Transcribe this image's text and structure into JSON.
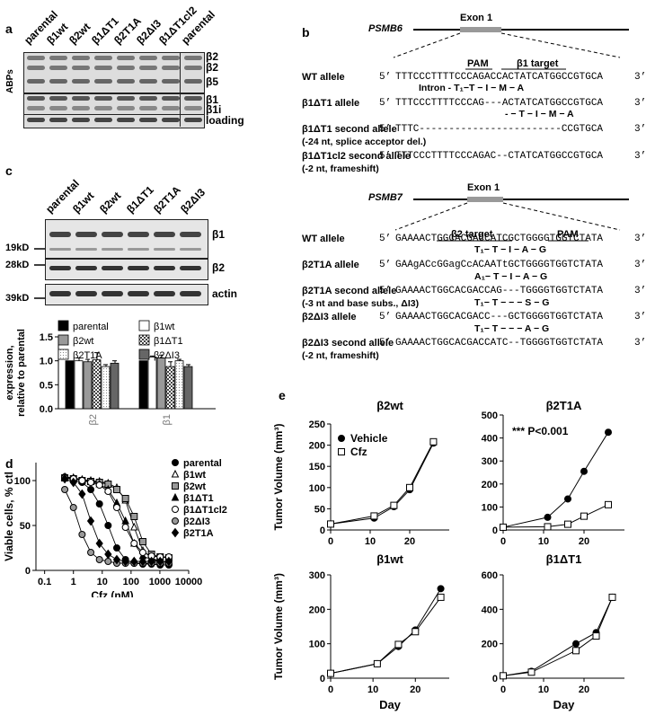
{
  "panels": {
    "a": "a",
    "b": "b",
    "c": "c",
    "d": "d",
    "e": "e"
  },
  "panel_a": {
    "lanes": [
      "parental",
      "β1wt",
      "β2wt",
      "β1ΔT1",
      "β2T1A",
      "β2ΔI3",
      "β1ΔT1cl2",
      "parental"
    ],
    "side_label": "ABPs",
    "band_labels": [
      "β2",
      "β2",
      "β5",
      "β1",
      "β1i",
      "loading"
    ]
  },
  "panel_b": {
    "gene1": "PSMB6",
    "exon1": "Exon 1",
    "pam1": "PAM",
    "target1": "β1 target",
    "rows1": [
      {
        "label": "WT allele",
        "five": "5’",
        "seq": "TTTCCCTTTTCCCAGACCACTATCATGGCCGTGCA",
        "three": "3’"
      },
      {
        "label": "β1ΔT1 allele",
        "five": "5’",
        "seq": "TTTCCCTTTTCCCAG---ACTATCATGGCCGTGCA",
        "three": "3’"
      },
      {
        "label": "β1ΔT1 second allele",
        "sub": "(-24 nt, splice acceptor del.)",
        "five": "5’",
        "seq": "TTTC------------------------CCGTGCA",
        "three": "3’"
      },
      {
        "label": "β1ΔT1cl2 second allele",
        "sub": "(-2 nt, frameshift)",
        "five": "5’",
        "seq": "TTTCCCTTTTCCCAGAC--CTATCATGGCCGTGCA",
        "three": "3’"
      }
    ],
    "aa1_wt": "Intron - T₁−T − I − M − A",
    "aa1_mut": "- − T − I − M − A",
    "gene2": "PSMB7",
    "exon2": "Exon 1",
    "pam2": "PAM",
    "target2": "β2 target",
    "rows2": [
      {
        "label": "WT allele",
        "five": "5’",
        "seq": "GAAAACTGGCACGACCATCGCTGGGGTGGTCTATA",
        "three": "3’"
      },
      {
        "label": "β2T1A allele",
        "five": "5’",
        "seq": "GAAgACcGGagCcACAATtGCTGGGGTGGTCTATA",
        "three": "3’"
      },
      {
        "label": "β2T1A second allele",
        "sub": "(-3 nt and base subs., ΔI3)",
        "five": "5’",
        "seq": "GAAAACTGGCACGACCAG---TGGGGTGGTCTATA",
        "three": "3’"
      },
      {
        "label": "β2ΔI3 allele",
        "five": "5’",
        "seq": "GAAAACTGGCACGACC---GCTGGGGTGGTCTATA",
        "three": "3’"
      },
      {
        "label": "β2ΔI3 second allele",
        "sub": "(-2 nt, frameshift)",
        "five": "5’",
        "seq": "GAAAACTGGCACGACCATC--TGGGGTGGTCTATA",
        "three": "3’"
      }
    ],
    "aa2": [
      "T₁− T − I − A − G",
      "A₁− T − I − A − G",
      "T₁− T − − − S − G",
      "T₁− T − − − A − G"
    ]
  },
  "panel_c": {
    "lanes": [
      "parental",
      "β1wt",
      "β2wt",
      "β1ΔT1",
      "β2T1A",
      "β2ΔI3"
    ],
    "blot_labels": [
      "β1",
      "β2",
      "actin"
    ],
    "mw": [
      "19kD",
      "28kD",
      "39kD"
    ]
  },
  "chart_data": [
    {
      "id": "c-bar",
      "type": "bar",
      "ylabel": "expression,\nrelative to parental",
      "categories": [
        "β2",
        "β1"
      ],
      "ylim": [
        0,
        1.5
      ],
      "yticks": [
        "0.0",
        "0.5",
        "1.0",
        "1.5"
      ],
      "series": [
        {
          "name": "parental",
          "color": "#000000",
          "pattern": "solid",
          "values": [
            1.0,
            1.0
          ]
        },
        {
          "name": "β1wt",
          "color": "#ffffff",
          "pattern": "open",
          "values": [
            1.0,
            1.08
          ]
        },
        {
          "name": "β2wt",
          "color": "#999999",
          "pattern": "solid",
          "values": [
            0.98,
            1.06
          ]
        },
        {
          "name": "β1ΔT1",
          "color": "#555555",
          "pattern": "check",
          "values": [
            1.02,
            0.88
          ]
        },
        {
          "name": "β2T1A",
          "color": "#dddddd",
          "pattern": "dots",
          "values": [
            0.88,
            1.0
          ]
        },
        {
          "name": "β2ΔI3",
          "color": "#666666",
          "pattern": "solid",
          "values": [
            0.95,
            0.88
          ]
        }
      ],
      "errors": [
        [
          0,
          0.06,
          0.05,
          0.15,
          0.04,
          0.05
        ],
        [
          0,
          0.02,
          0.06,
          0.1,
          0.03,
          0.04
        ]
      ]
    },
    {
      "id": "d-dose",
      "type": "scatter",
      "xlabel": "Cfz (nM)",
      "ylabel": "Viable cells, % ctl",
      "xscale": "log",
      "xlim": [
        0.05,
        10000
      ],
      "ylim": [
        0,
        120
      ],
      "xticks": [
        "0.1",
        "1",
        "10",
        "100",
        "1000",
        "10000"
      ],
      "yticks": [
        "0",
        "50",
        "100"
      ],
      "series": [
        {
          "name": "parental",
          "marker": "circle-filled",
          "x": [
            0.5,
            1,
            2,
            4,
            8,
            16,
            32,
            64,
            128,
            256,
            512,
            1024,
            2048
          ],
          "y": [
            104,
            100,
            98,
            90,
            74,
            50,
            25,
            12,
            8,
            7,
            7,
            6,
            6
          ]
        },
        {
          "name": "β1wt",
          "marker": "triangle-open",
          "x": [
            0.5,
            1,
            2,
            4,
            8,
            16,
            32,
            64,
            128,
            256,
            512,
            1024,
            2048
          ],
          "y": [
            104,
            103,
            101,
            100,
            99,
            97,
            92,
            78,
            48,
            22,
            14,
            10,
            9
          ]
        },
        {
          "name": "β2wt",
          "marker": "square-filled-gray",
          "x": [
            0.5,
            1,
            2,
            4,
            8,
            16,
            32,
            64,
            128,
            256,
            512,
            1024,
            2048
          ],
          "y": [
            103,
            102,
            100,
            99,
            98,
            96,
            90,
            80,
            60,
            32,
            18,
            15,
            14
          ]
        },
        {
          "name": "β1ΔT1",
          "marker": "triangle-filled",
          "x": [
            0.5,
            1,
            2,
            4,
            8,
            16,
            32,
            64,
            128,
            256,
            512,
            1024,
            2048
          ],
          "y": [
            104,
            103,
            101,
            99,
            96,
            90,
            75,
            55,
            30,
            16,
            12,
            10,
            10
          ]
        },
        {
          "name": "β1ΔT1cl2",
          "marker": "circle-open",
          "x": [
            0.5,
            1,
            2,
            4,
            8,
            16,
            32,
            64,
            128,
            256,
            512,
            1024,
            2048
          ],
          "y": [
            103,
            102,
            100,
            98,
            95,
            88,
            70,
            48,
            30,
            20,
            16,
            15,
            15
          ]
        },
        {
          "name": "β2ΔI3",
          "marker": "circle-filled-gray",
          "x": [
            0.5,
            1,
            2,
            4,
            8,
            16,
            32,
            64,
            128,
            256,
            512,
            1024,
            2048
          ],
          "y": [
            90,
            70,
            40,
            20,
            12,
            10,
            8,
            8,
            8,
            8,
            8,
            8,
            8
          ]
        },
        {
          "name": "β2T1A",
          "marker": "diamond-filled",
          "x": [
            0.5,
            1,
            2,
            4,
            8,
            16,
            32,
            64,
            128,
            256,
            512,
            1024,
            2048
          ],
          "y": [
            102,
            98,
            85,
            55,
            30,
            18,
            12,
            10,
            10,
            10,
            10,
            10,
            10
          ]
        }
      ]
    },
    {
      "id": "e-b2wt",
      "type": "line",
      "title": "β2wt",
      "ylabel": "Tumor Volume (mm³)",
      "xlim": [
        0,
        30
      ],
      "ylim": [
        0,
        250
      ],
      "xticks": [
        "0",
        "10",
        "20"
      ],
      "yticks": [
        "0",
        "50",
        "100",
        "150",
        "200",
        "250"
      ],
      "series": [
        {
          "name": "Vehicle",
          "marker": "circle-filled",
          "x": [
            0,
            11,
            16,
            20,
            26
          ],
          "y": [
            14,
            28,
            55,
            95,
            205
          ]
        },
        {
          "name": "Cfz",
          "marker": "square-open",
          "x": [
            0,
            11,
            16,
            20,
            26
          ],
          "y": [
            14,
            33,
            58,
            100,
            208
          ]
        }
      ]
    },
    {
      "id": "e-b2t1a",
      "type": "line",
      "title": "β2T1A",
      "xlim": [
        0,
        30
      ],
      "ylim": [
        0,
        500
      ],
      "xticks": [
        "0",
        "10",
        "20"
      ],
      "yticks": [
        "0",
        "100",
        "200",
        "300",
        "400",
        "500"
      ],
      "annotation": "*** P<0.001",
      "series": [
        {
          "name": "Vehicle",
          "marker": "circle-filled",
          "x": [
            0,
            11,
            16,
            20,
            26
          ],
          "y": [
            12,
            55,
            135,
            255,
            425
          ]
        },
        {
          "name": "Cfz",
          "marker": "square-open",
          "x": [
            0,
            11,
            16,
            20,
            26
          ],
          "y": [
            12,
            14,
            25,
            60,
            110
          ]
        }
      ]
    },
    {
      "id": "e-b1wt",
      "type": "line",
      "title": "β1wt",
      "ylabel": "Tumor Volume (mm³)",
      "xlabel": "Day",
      "xlim": [
        0,
        28
      ],
      "ylim": [
        0,
        300
      ],
      "xticks": [
        "0",
        "10",
        "20"
      ],
      "yticks": [
        "0",
        "100",
        "200",
        "300"
      ],
      "series": [
        {
          "name": "Vehicle",
          "marker": "circle-filled",
          "x": [
            0,
            11,
            16,
            20,
            26
          ],
          "y": [
            14,
            42,
            92,
            140,
            260
          ]
        },
        {
          "name": "Cfz",
          "marker": "square-open",
          "x": [
            0,
            11,
            16,
            20,
            26
          ],
          "y": [
            14,
            42,
            98,
            135,
            235
          ]
        }
      ]
    },
    {
      "id": "e-b1dt1",
      "type": "line",
      "title": "β1ΔT1",
      "xlabel": "Day",
      "xlim": [
        0,
        30
      ],
      "ylim": [
        0,
        600
      ],
      "xticks": [
        "0",
        "10",
        "20"
      ],
      "yticks": [
        "0",
        "200",
        "400",
        "600"
      ],
      "series": [
        {
          "name": "Vehicle",
          "marker": "circle-filled",
          "x": [
            0,
            7,
            18,
            23,
            27
          ],
          "y": [
            14,
            40,
            200,
            265,
            470
          ]
        },
        {
          "name": "Cfz",
          "marker": "square-open",
          "x": [
            0,
            7,
            18,
            23,
            27
          ],
          "y": [
            14,
            35,
            160,
            245,
            470
          ]
        }
      ]
    }
  ]
}
